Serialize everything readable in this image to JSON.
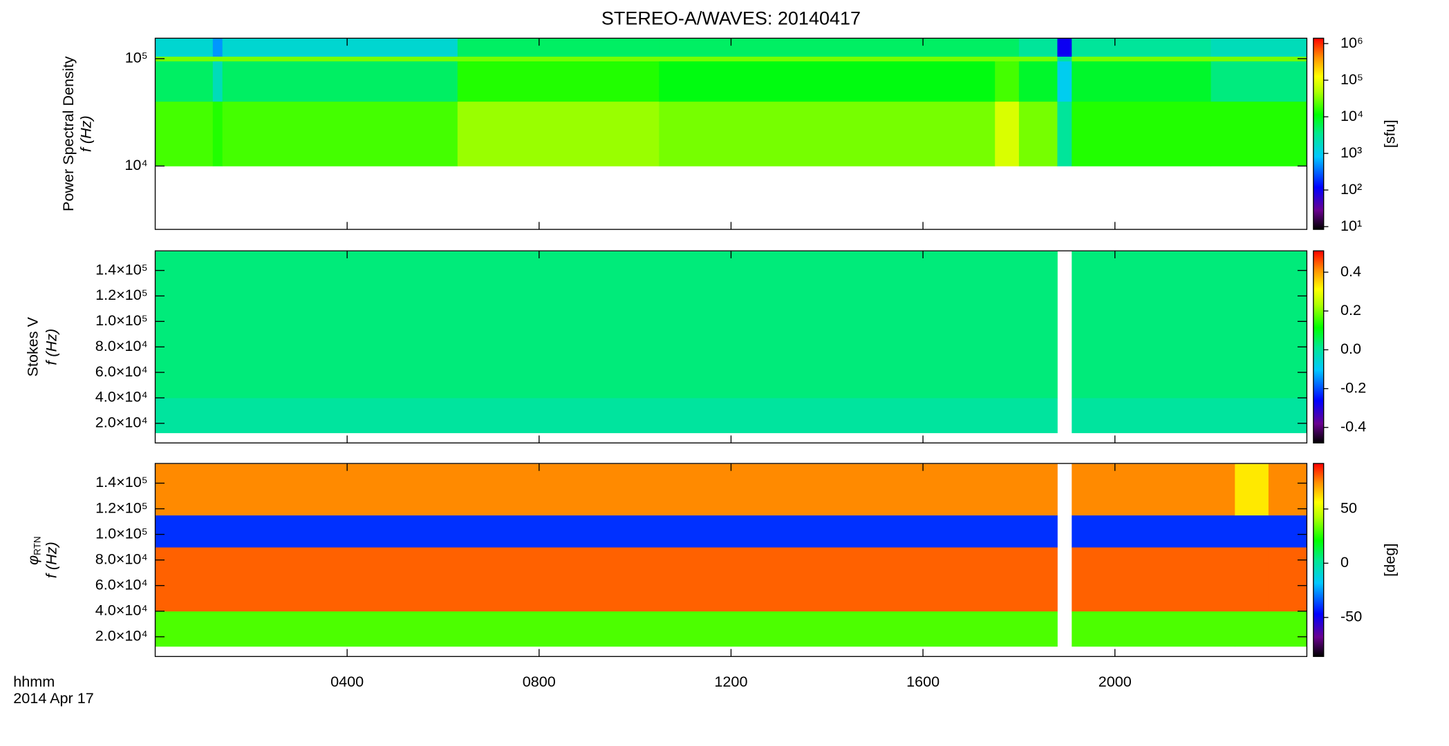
{
  "chart_data": [
    {
      "type": "heatmap",
      "title": "STEREO-A/WAVES: 20140417",
      "ylabel": "Power Spectral Density",
      "ylabel2": "f (Hz)",
      "log_y": true,
      "ylim": [
        2570,
        155000
      ],
      "yticks": [
        {
          "value": 10000,
          "label": "10⁴"
        },
        {
          "value": 100000,
          "label": "10⁵"
        }
      ],
      "xlim": [
        0,
        24
      ],
      "x_edges": [
        0,
        1.2,
        1.4,
        6.3,
        10.5,
        17.5,
        18.0,
        18.8,
        19.1,
        22,
        24
      ],
      "y_edges": [
        10000,
        40000,
        95000,
        105000,
        155000
      ],
      "z": [
        [
          20000,
          15000,
          20000,
          40000,
          30000,
          80000,
          30000,
          3000,
          15000,
          15000
        ],
        [
          5000,
          2000,
          5000,
          15000,
          10000,
          20000,
          8000,
          1000,
          8000,
          4000
        ],
        [
          30000,
          30000,
          30000,
          30000,
          30000,
          30000,
          30000,
          3000,
          30000,
          30000
        ],
        [
          1500,
          500,
          1500,
          5000,
          5000,
          5000,
          3000,
          100,
          3000,
          2000
        ]
      ],
      "colorbar": {
        "log": true,
        "lim": [
          8.4,
          1400000
        ],
        "label": "[sfu]",
        "ticks": [
          {
            "value": 10,
            "label": "10¹"
          },
          {
            "value": 100,
            "label": "10²"
          },
          {
            "value": 1000,
            "label": "10³"
          },
          {
            "value": 10000,
            "label": "10⁴"
          },
          {
            "value": 100000,
            "label": "10⁵"
          },
          {
            "value": 1000000,
            "label": "10⁶"
          }
        ]
      }
    },
    {
      "type": "heatmap",
      "ylabel": "Stokes V",
      "ylabel2": "f (Hz)",
      "log_y": false,
      "ylim": [
        4600,
        155400
      ],
      "yticks": [
        {
          "value": 20000,
          "label": "2.0×10⁴"
        },
        {
          "value": 40000,
          "label": "4.0×10⁴"
        },
        {
          "value": 60000,
          "label": "6.0×10⁴"
        },
        {
          "value": 80000,
          "label": "8.0×10⁴"
        },
        {
          "value": 100000,
          "label": "1.0×10⁵"
        },
        {
          "value": 120000,
          "label": "1.2×10⁵"
        },
        {
          "value": 140000,
          "label": "1.4×10⁵"
        }
      ],
      "xlim": [
        0,
        24
      ],
      "x_edges": [
        0,
        18.8,
        19.1,
        24
      ],
      "y_edges": [
        12500,
        40000,
        155000
      ],
      "z": [
        [
          0.0,
          null,
          0.0
        ],
        [
          0.03,
          null,
          0.03
        ]
      ],
      "colorbar": {
        "log": false,
        "lim": [
          -0.48,
          0.51
        ],
        "ticks": [
          -0.4,
          -0.2,
          {
            "value": 0,
            "label": "0.0"
          },
          0.2,
          0.4
        ]
      }
    },
    {
      "type": "heatmap",
      "ylabel_symbol": "φ",
      "ylabel_subscript": "RTN",
      "ylabel2": "f (Hz)",
      "log_y": false,
      "ylim": [
        4600,
        155400
      ],
      "yticks": [
        {
          "value": 20000,
          "label": "2.0×10⁴"
        },
        {
          "value": 40000,
          "label": "4.0×10⁴"
        },
        {
          "value": 60000,
          "label": "6.0×10⁴"
        },
        {
          "value": 80000,
          "label": "8.0×10⁴"
        },
        {
          "value": 100000,
          "label": "1.0×10⁵"
        },
        {
          "value": 120000,
          "label": "1.2×10⁵"
        },
        {
          "value": 140000,
          "label": "1.4×10⁵"
        }
      ],
      "xlim": [
        0,
        24
      ],
      "xticks": [
        {
          "value": 4,
          "label": "0400"
        },
        {
          "value": 8,
          "label": "0800"
        },
        {
          "value": 12,
          "label": "1200"
        },
        {
          "value": 16,
          "label": "1600"
        },
        {
          "value": 20,
          "label": "2000"
        }
      ],
      "xlabel": "hhmm",
      "xlabel2": "2014 Apr 17",
      "x_edges": [
        0,
        18.8,
        19.1,
        22.5,
        23.2,
        24
      ],
      "y_edges": [
        12500,
        40000,
        90000,
        115000,
        155000
      ],
      "z": [
        [
          30,
          null,
          30,
          30,
          30
        ],
        [
          80,
          null,
          80,
          80,
          80
        ],
        [
          -40,
          null,
          -40,
          -40,
          -40
        ],
        [
          75,
          null,
          75,
          60,
          75
        ]
      ],
      "colorbar": {
        "log": false,
        "lim": [
          -86,
          92
        ],
        "label": "[deg]",
        "ticks": [
          -50,
          0,
          50
        ]
      }
    }
  ]
}
